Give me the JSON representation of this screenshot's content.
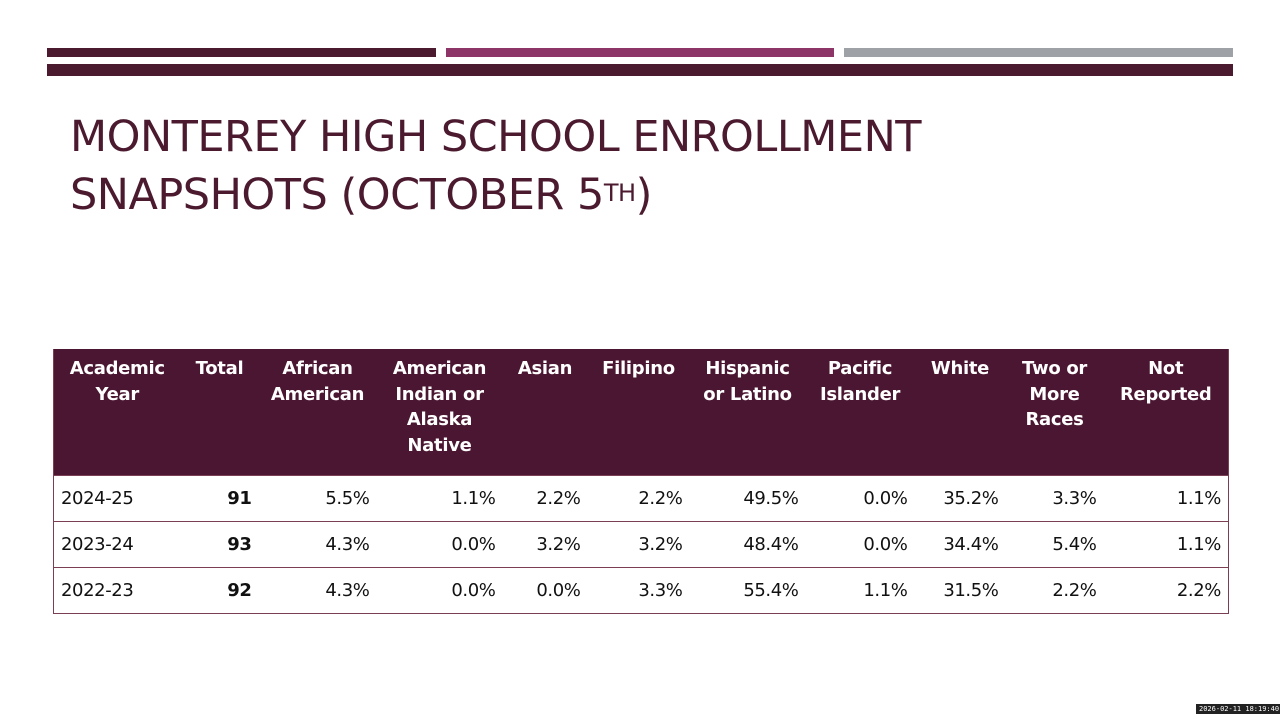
{
  "slide": {
    "title_line1": "MONTEREY HIGH SCHOOL ENROLLMENT",
    "title_line2": "SNAPSHOTS (OCTOBER 5",
    "title_sup": "TH",
    "title_close": ")",
    "colors": {
      "primary": "#4b1a2f",
      "accent": "#8d3566",
      "gray": "#9ea2a6"
    }
  },
  "table": {
    "headers": [
      [
        "Academic",
        "Year"
      ],
      [
        "Total"
      ],
      [
        "African",
        "American"
      ],
      [
        "American",
        "Indian or",
        "Alaska",
        "Native"
      ],
      [
        "Asian"
      ],
      [
        "Filipino"
      ],
      [
        "Hispanic",
        "or Latino"
      ],
      [
        "Pacific",
        "Islander"
      ],
      [
        "White"
      ],
      [
        "Two or",
        "More",
        "Races"
      ],
      [
        "Not",
        "Reported"
      ]
    ],
    "rows": [
      [
        "2024-25",
        "91",
        "5.5%",
        "1.1%",
        "2.2%",
        "2.2%",
        "49.5%",
        "0.0%",
        "35.2%",
        "3.3%",
        "1.1%"
      ],
      [
        "2023-24",
        "93",
        "4.3%",
        "0.0%",
        "3.2%",
        "3.2%",
        "48.4%",
        "0.0%",
        "34.4%",
        "5.4%",
        "1.1%"
      ],
      [
        "2022-23",
        "92",
        "4.3%",
        "0.0%",
        "0.0%",
        "3.3%",
        "55.4%",
        "1.1%",
        "31.5%",
        "2.2%",
        "2.2%"
      ]
    ]
  },
  "timestamp": "2026-02-11  18:19:40"
}
